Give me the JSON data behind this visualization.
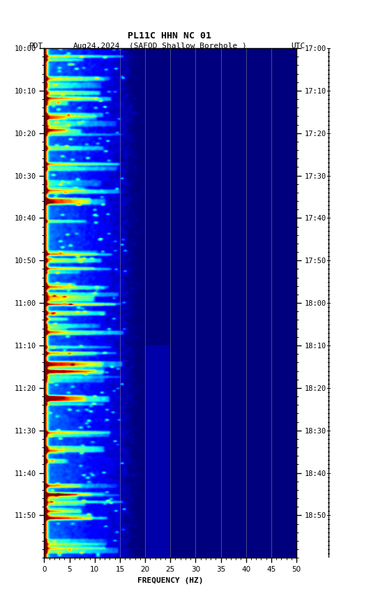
{
  "title_line1": "PL11C HHN NC 01",
  "xlabel": "FREQUENCY (HZ)",
  "freq_min": 0,
  "freq_max": 50,
  "time_minutes": 120,
  "ytick_labels_left": [
    "10:00",
    "10:10",
    "10:20",
    "10:30",
    "10:40",
    "10:50",
    "11:00",
    "11:10",
    "11:20",
    "11:30",
    "11:40",
    "11:50"
  ],
  "ytick_labels_right": [
    "17:00",
    "17:10",
    "17:20",
    "17:30",
    "17:40",
    "17:50",
    "18:00",
    "18:10",
    "18:20",
    "18:30",
    "18:40",
    "18:50"
  ],
  "ytick_positions": [
    0,
    10,
    20,
    30,
    40,
    50,
    60,
    70,
    80,
    90,
    100,
    110
  ],
  "vline_positions": [
    15,
    20,
    25,
    30,
    35,
    40,
    45
  ],
  "background_color": "#ffffff",
  "fig_width": 5.52,
  "fig_height": 8.64,
  "dpi": 100
}
